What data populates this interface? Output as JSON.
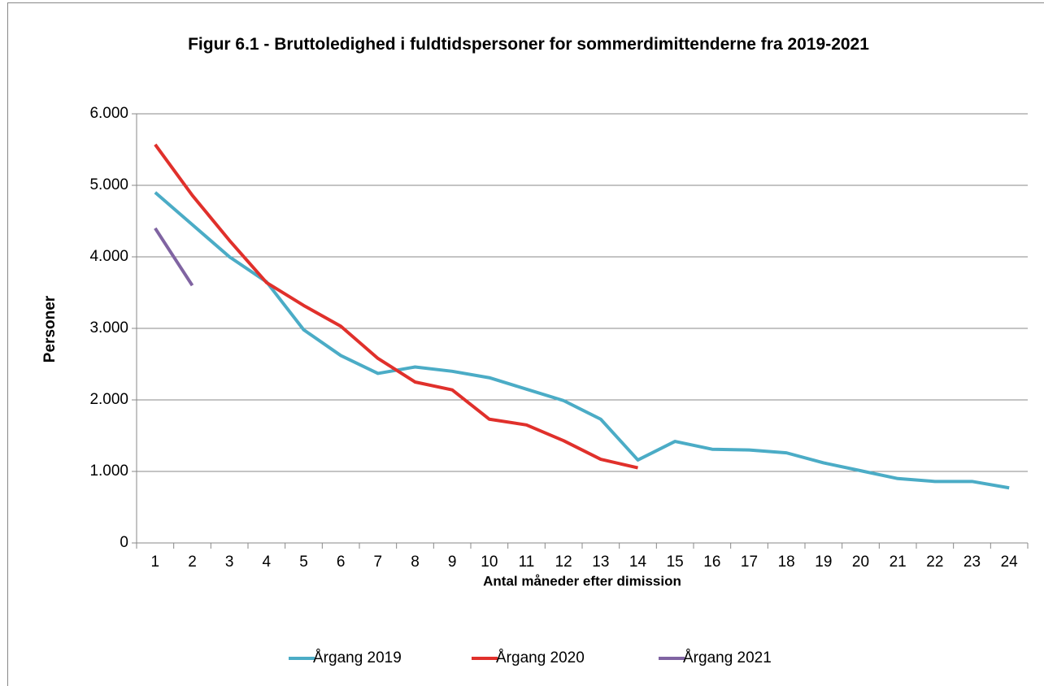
{
  "chart_data": {
    "type": "line",
    "title": "Figur 6.1 - Bruttoledighed i fuldtidspersoner for sommerdimittenderne fra 2019-2021",
    "x_label": "Antal måneder efter dimission",
    "y_label": "Personer",
    "categories": [
      1,
      2,
      3,
      4,
      5,
      6,
      7,
      8,
      9,
      10,
      11,
      12,
      13,
      14,
      15,
      16,
      17,
      18,
      19,
      20,
      21,
      22,
      23,
      24
    ],
    "series": [
      {
        "name": "Årgang 2019",
        "color": "#4bacc6",
        "values": [
          4900,
          4450,
          4000,
          3650,
          2980,
          2620,
          2370,
          2460,
          2400,
          2310,
          2150,
          1990,
          1730,
          1160,
          1420,
          1310,
          1300,
          1260,
          1120,
          1010,
          900,
          860,
          860,
          770
        ]
      },
      {
        "name": "Årgang 2020",
        "color": "#e0302b",
        "values": [
          5570,
          4860,
          4230,
          3640,
          3320,
          3030,
          2580,
          2250,
          2140,
          1730,
          1650,
          1430,
          1170,
          1050,
          null,
          null,
          null,
          null,
          null,
          null,
          null,
          null,
          null,
          null
        ]
      },
      {
        "name": "Årgang 2021",
        "color": "#8064a2",
        "values": [
          4400,
          3600,
          null,
          null,
          null,
          null,
          null,
          null,
          null,
          null,
          null,
          null,
          null,
          null,
          null,
          null,
          null,
          null,
          null,
          null,
          null,
          null,
          null,
          null
        ]
      }
    ],
    "ylim": [
      0,
      6000
    ],
    "yticks": [
      0,
      {
        "value": 1000,
        "label": "1.000"
      },
      {
        "value": 2000,
        "label": "2.000"
      },
      {
        "value": 3000,
        "label": "3.000"
      },
      {
        "value": 4000,
        "label": "4.000"
      },
      {
        "value": 5000,
        "label": "5.000"
      },
      {
        "value": 6000,
        "label": "6.000"
      }
    ],
    "grid": true,
    "legend": "bottom"
  }
}
